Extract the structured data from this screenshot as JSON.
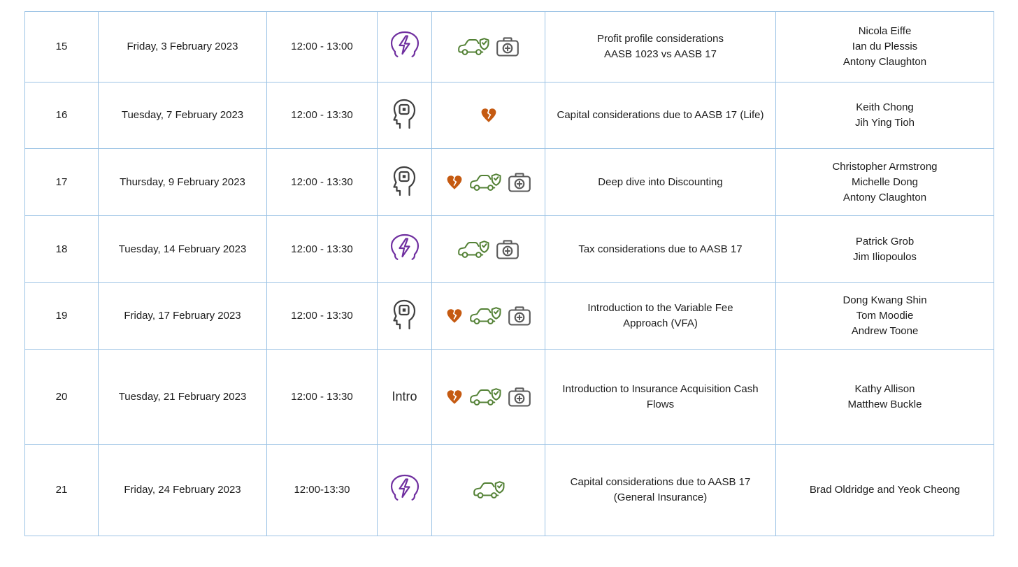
{
  "colors": {
    "border": "#9CC3E5",
    "text": "#1c1c1c",
    "purple_icon": "#7030A0",
    "dark_icon": "#3F3F3F",
    "orange_icon": "#C55A11",
    "green_icon": "#538135",
    "gray_icon": "#595959"
  },
  "table": {
    "rows": [
      {
        "number": "15",
        "date": "Friday, 3 February 2023",
        "time": "12:00 - 13:00",
        "type_icon": "head-lightning-icon",
        "type_text": "",
        "product_icons": [
          "car-shield-icon",
          "first-aid-kit-icon"
        ],
        "topic_lines": [
          "Profit profile considerations",
          "AASB 1023 vs AASB 17"
        ],
        "presenter_lines": [
          "Nicola Eiffe",
          "Ian du Plessis",
          "Antony Claughton"
        ]
      },
      {
        "number": "16",
        "date": "Tuesday, 7 February 2023",
        "time": "12:00 - 13:30",
        "type_icon": "head-chip-icon",
        "type_text": "",
        "product_icons": [
          "broken-heart-icon"
        ],
        "topic_lines": [
          "Capital considerations due to AASB 17 (Life)"
        ],
        "presenter_lines": [
          "Keith Chong",
          "Jih Ying Tioh"
        ]
      },
      {
        "number": "17",
        "date": "Thursday, 9 February 2023",
        "time": "12:00 - 13:30",
        "type_icon": "head-chip-icon",
        "type_text": "",
        "product_icons": [
          "broken-heart-icon",
          "car-shield-icon",
          "first-aid-kit-icon"
        ],
        "topic_lines": [
          "Deep dive into Discounting"
        ],
        "presenter_lines": [
          "Christopher Armstrong",
          "Michelle Dong",
          "Antony Claughton"
        ]
      },
      {
        "number": "18",
        "date": "Tuesday, 14 February 2023",
        "time": "12:00 - 13:30",
        "type_icon": "head-lightning-icon",
        "type_text": "",
        "product_icons": [
          "car-shield-icon",
          "first-aid-kit-icon"
        ],
        "topic_lines": [
          "Tax considerations due to AASB 17"
        ],
        "presenter_lines": [
          "Patrick Grob",
          "Jim Iliopoulos"
        ]
      },
      {
        "number": "19",
        "date": "Friday, 17 February 2023",
        "time": "12:00 - 13:30",
        "type_icon": "head-chip-icon",
        "type_text": "",
        "product_icons": [
          "broken-heart-icon",
          "car-shield-icon",
          "first-aid-kit-icon"
        ],
        "topic_lines": [
          "Introduction to the Variable Fee",
          "Approach (VFA)"
        ],
        "presenter_lines": [
          "Dong Kwang Shin",
          "Tom Moodie",
          "Andrew Toone"
        ]
      },
      {
        "number": "20",
        "date": "Tuesday, 21 February 2023",
        "time": "12:00 - 13:30",
        "type_icon": "",
        "type_text": "Intro",
        "product_icons": [
          "broken-heart-icon",
          "car-shield-icon",
          "first-aid-kit-icon"
        ],
        "topic_lines": [
          "Introduction to Insurance Acquisition Cash",
          "Flows"
        ],
        "presenter_lines": [
          "Kathy Allison",
          "Matthew Buckle"
        ]
      },
      {
        "number": "21",
        "date": "Friday, 24 February 2023",
        "time": "12:00-13:30",
        "type_icon": "head-lightning-icon",
        "type_text": "",
        "product_icons": [
          "car-shield-icon"
        ],
        "topic_lines": [
          "Capital considerations due to AASB 17",
          "(General Insurance)"
        ],
        "presenter_lines": [
          "Brad Oldridge and Yeok Cheong"
        ]
      }
    ]
  }
}
